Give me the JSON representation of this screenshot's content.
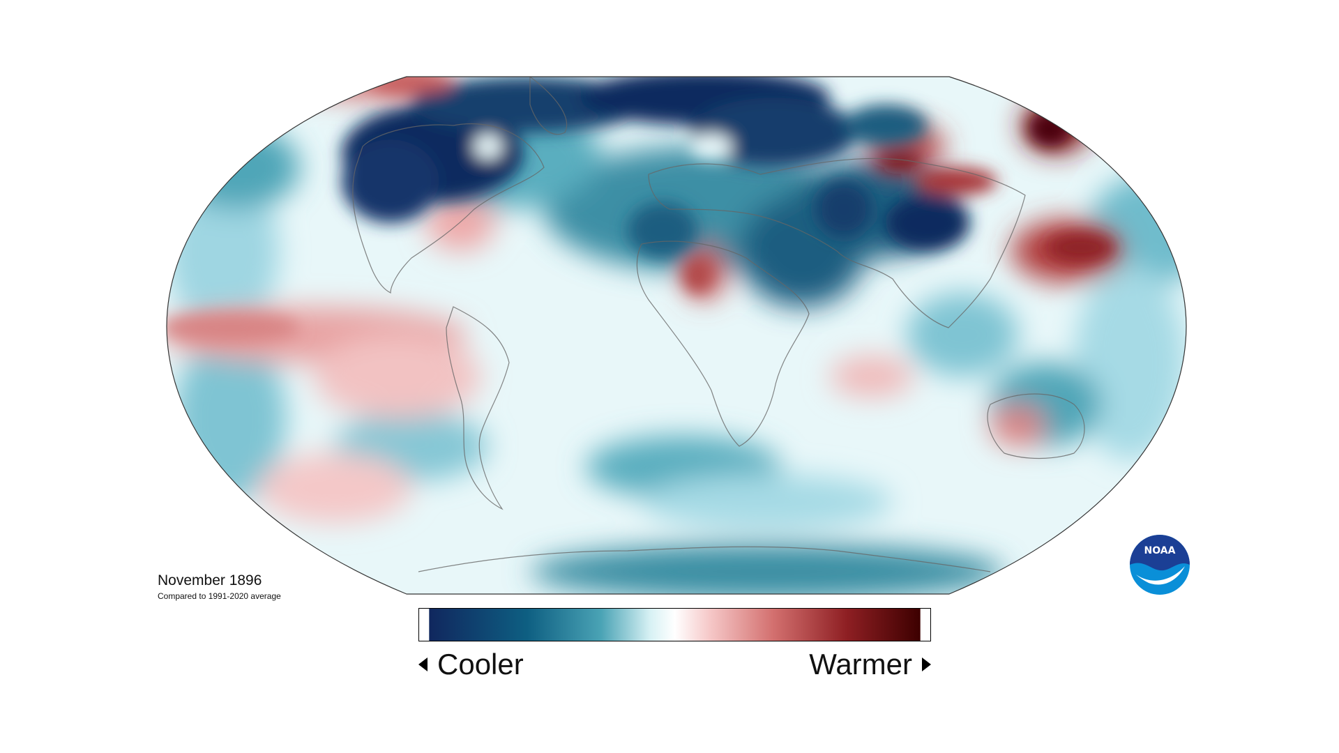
{
  "map": {
    "title": "November 1896",
    "subtitle": "Compared to 1991-2020 average",
    "projection": "Robinson",
    "variable": "temperature anomaly",
    "legend": {
      "low_label": "Cooler",
      "high_label": "Warmer",
      "colors": [
        "#10275e",
        "#0e5f82",
        "#4aa3b5",
        "#d7f1f4",
        "#ffffff",
        "#f6c9c9",
        "#d3706f",
        "#8e1f23",
        "#3d0000"
      ]
    },
    "colors": {
      "ocean_base": "#e8f7f9",
      "cool_light": "#bfe6ee",
      "cool_mid": "#5fb0c1",
      "cool_dark": "#12456e",
      "cool_darkest": "#0f2a5f",
      "warm_light": "#f4c5c5",
      "warm_mid": "#d47575",
      "warm_dark": "#9e2a2b",
      "warm_darkest": "#4a0508",
      "coastline": "#666666"
    },
    "logo": {
      "text": "NOAA",
      "icon": "noaa-logo-icon",
      "colors": [
        "#1b3f95",
        "#0a8fd8",
        "#ffffff"
      ]
    }
  }
}
